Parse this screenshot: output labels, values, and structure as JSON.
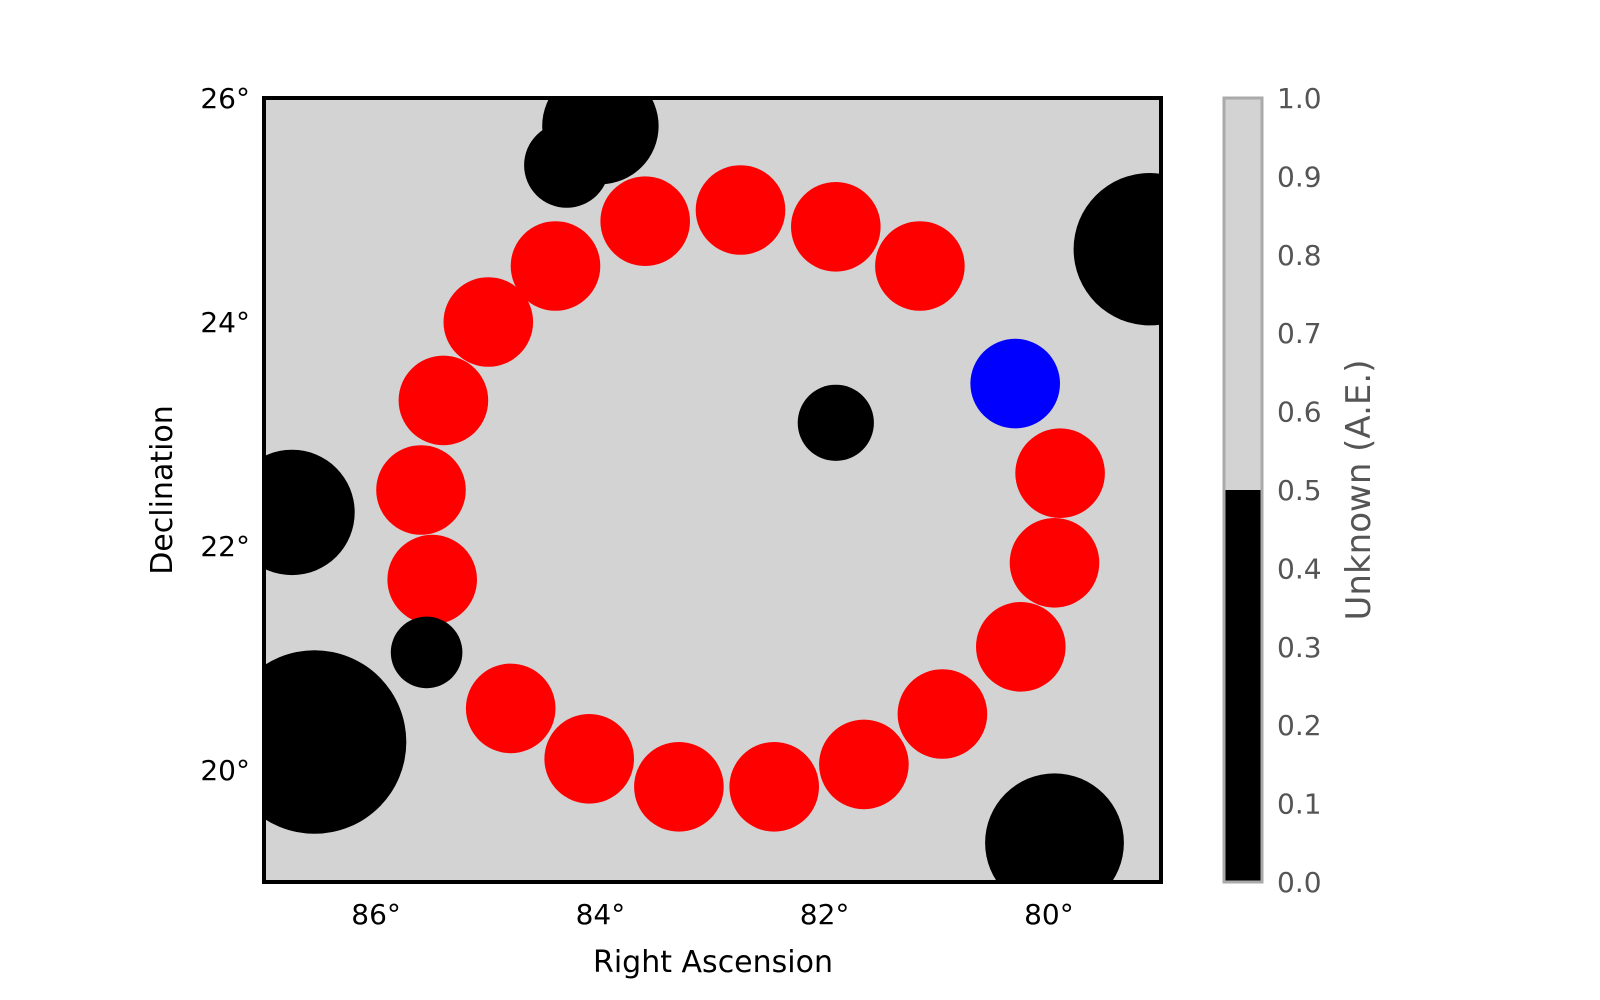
{
  "chart_data": {
    "type": "scatter",
    "title": "",
    "xlabel": "Right Ascension",
    "ylabel": "Declination",
    "xlim": [
      87.0,
      79.0
    ],
    "ylim": [
      19.0,
      26.0
    ],
    "x_reversed": true,
    "x_ticks": [
      86,
      84,
      82,
      80
    ],
    "x_tick_labels": [
      "86°",
      "84°",
      "82°",
      "80°"
    ],
    "y_ticks": [
      20,
      22,
      24,
      26
    ],
    "y_tick_labels": [
      "20°",
      "22°",
      "24°",
      "26°"
    ],
    "grid": false,
    "background_color": "#d3d3d3",
    "colorbar": {
      "label": "Unknown (A.E.)",
      "range": [
        0.0,
        1.0
      ],
      "ticks": [
        "0.0",
        "0.1",
        "0.2",
        "0.3",
        "0.4",
        "0.5",
        "0.6",
        "0.7",
        "0.8",
        "0.9",
        "1.0"
      ],
      "segments": [
        {
          "from": 0.0,
          "to": 0.5,
          "color": "#000000"
        },
        {
          "from": 0.5,
          "to": 1.0,
          "color": "#d3d3d3"
        }
      ]
    },
    "series": [
      {
        "color": "#ff0000",
        "radius_deg": 0.4,
        "points": [
          {
            "ra": 85.5,
            "dec": 21.7
          },
          {
            "ra": 85.6,
            "dec": 22.5
          },
          {
            "ra": 85.4,
            "dec": 23.3
          },
          {
            "ra": 85.0,
            "dec": 24.0
          },
          {
            "ra": 84.4,
            "dec": 24.5
          },
          {
            "ra": 83.6,
            "dec": 24.9
          },
          {
            "ra": 82.75,
            "dec": 25.0
          },
          {
            "ra": 81.9,
            "dec": 24.85
          },
          {
            "ra": 81.15,
            "dec": 24.5
          },
          {
            "ra": 79.9,
            "dec": 22.65
          },
          {
            "ra": 79.95,
            "dec": 21.85
          },
          {
            "ra": 80.25,
            "dec": 21.1
          },
          {
            "ra": 80.95,
            "dec": 20.5
          },
          {
            "ra": 81.65,
            "dec": 20.05
          },
          {
            "ra": 82.45,
            "dec": 19.85
          },
          {
            "ra": 83.3,
            "dec": 19.85
          },
          {
            "ra": 84.1,
            "dec": 20.1
          },
          {
            "ra": 84.8,
            "dec": 20.55
          }
        ]
      },
      {
        "color": "#0000ff",
        "radius_deg": 0.4,
        "points": [
          {
            "ra": 80.3,
            "dec": 23.45
          }
        ]
      },
      {
        "color": "#000000",
        "points": [
          {
            "ra": 86.55,
            "dec": 20.25,
            "r": 0.82
          },
          {
            "ra": 86.75,
            "dec": 22.3,
            "r": 0.56
          },
          {
            "ra": 85.55,
            "dec": 21.05,
            "r": 0.32
          },
          {
            "ra": 84.3,
            "dec": 25.4,
            "r": 0.38
          },
          {
            "ra": 84.0,
            "dec": 25.75,
            "r": 0.52
          },
          {
            "ra": 81.9,
            "dec": 23.1,
            "r": 0.34
          },
          {
            "ra": 79.1,
            "dec": 24.65,
            "r": 0.68
          },
          {
            "ra": 79.95,
            "dec": 19.35,
            "r": 0.62
          }
        ]
      }
    ]
  }
}
